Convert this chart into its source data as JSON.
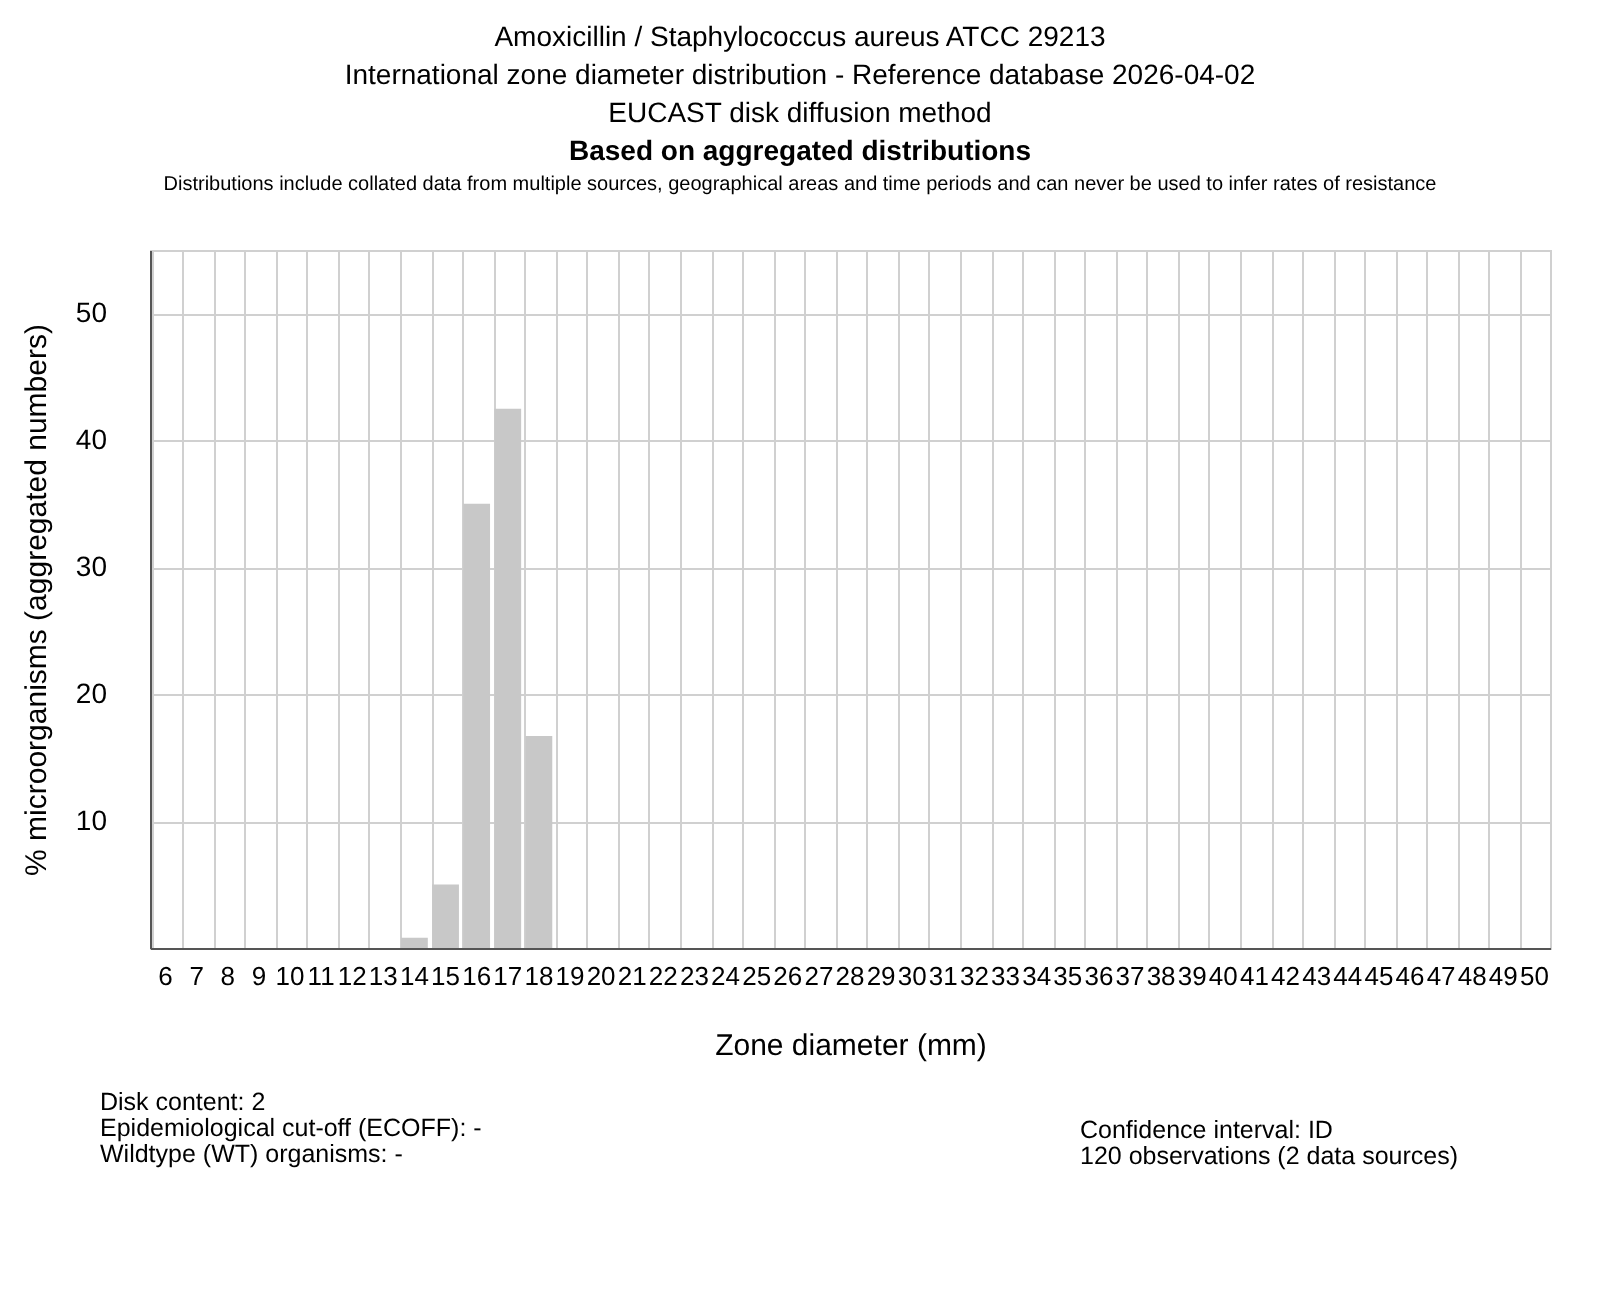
{
  "chart_data": {
    "type": "bar",
    "title": "Amoxicillin / Staphylococcus aureus ATCC 29213",
    "subtitle": "International zone diameter distribution - Reference database 2026-04-02",
    "annotations": [
      "EUCAST disk diffusion method",
      "Based on aggregated distributions",
      "Distributions include collated data from multiple sources, geographical areas and time periods and can never be used to infer rates of resistance",
      "Disk content: 2",
      "Epidemiological cut-off (ECOFF): -",
      "Wildtype (WT) organisms:  -",
      "Confidence interval: ID",
      "120 observations (2 data sources)"
    ],
    "xlabel": "Zone diameter (mm)",
    "ylabel": "% microorganisms (aggregated numbers)",
    "categories": [
      "6",
      "7",
      "8",
      "9",
      "10",
      "11",
      "12",
      "13",
      "14",
      "15",
      "16",
      "17",
      "18",
      "19",
      "20",
      "21",
      "22",
      "23",
      "24",
      "25",
      "26",
      "27",
      "28",
      "29",
      "30",
      "31",
      "32",
      "33",
      "34",
      "35",
      "36",
      "37",
      "38",
      "39",
      "40",
      "41",
      "42",
      "43",
      "44",
      "45",
      "46",
      "47",
      "48",
      "49",
      "50"
    ],
    "values": [
      0,
      0,
      0,
      0,
      0,
      0,
      0,
      0,
      0.8,
      5,
      35,
      42.5,
      16.7,
      0,
      0,
      0,
      0,
      0,
      0,
      0,
      0,
      0,
      0,
      0,
      0,
      0,
      0,
      0,
      0,
      0,
      0,
      0,
      0,
      0,
      0,
      0,
      0,
      0,
      0,
      0,
      0,
      0,
      0,
      0,
      0
    ],
    "color": "#c8c8c8",
    "ylim": [
      0,
      55
    ],
    "yticks": [
      10,
      20,
      30,
      40,
      50
    ],
    "grid": true
  }
}
